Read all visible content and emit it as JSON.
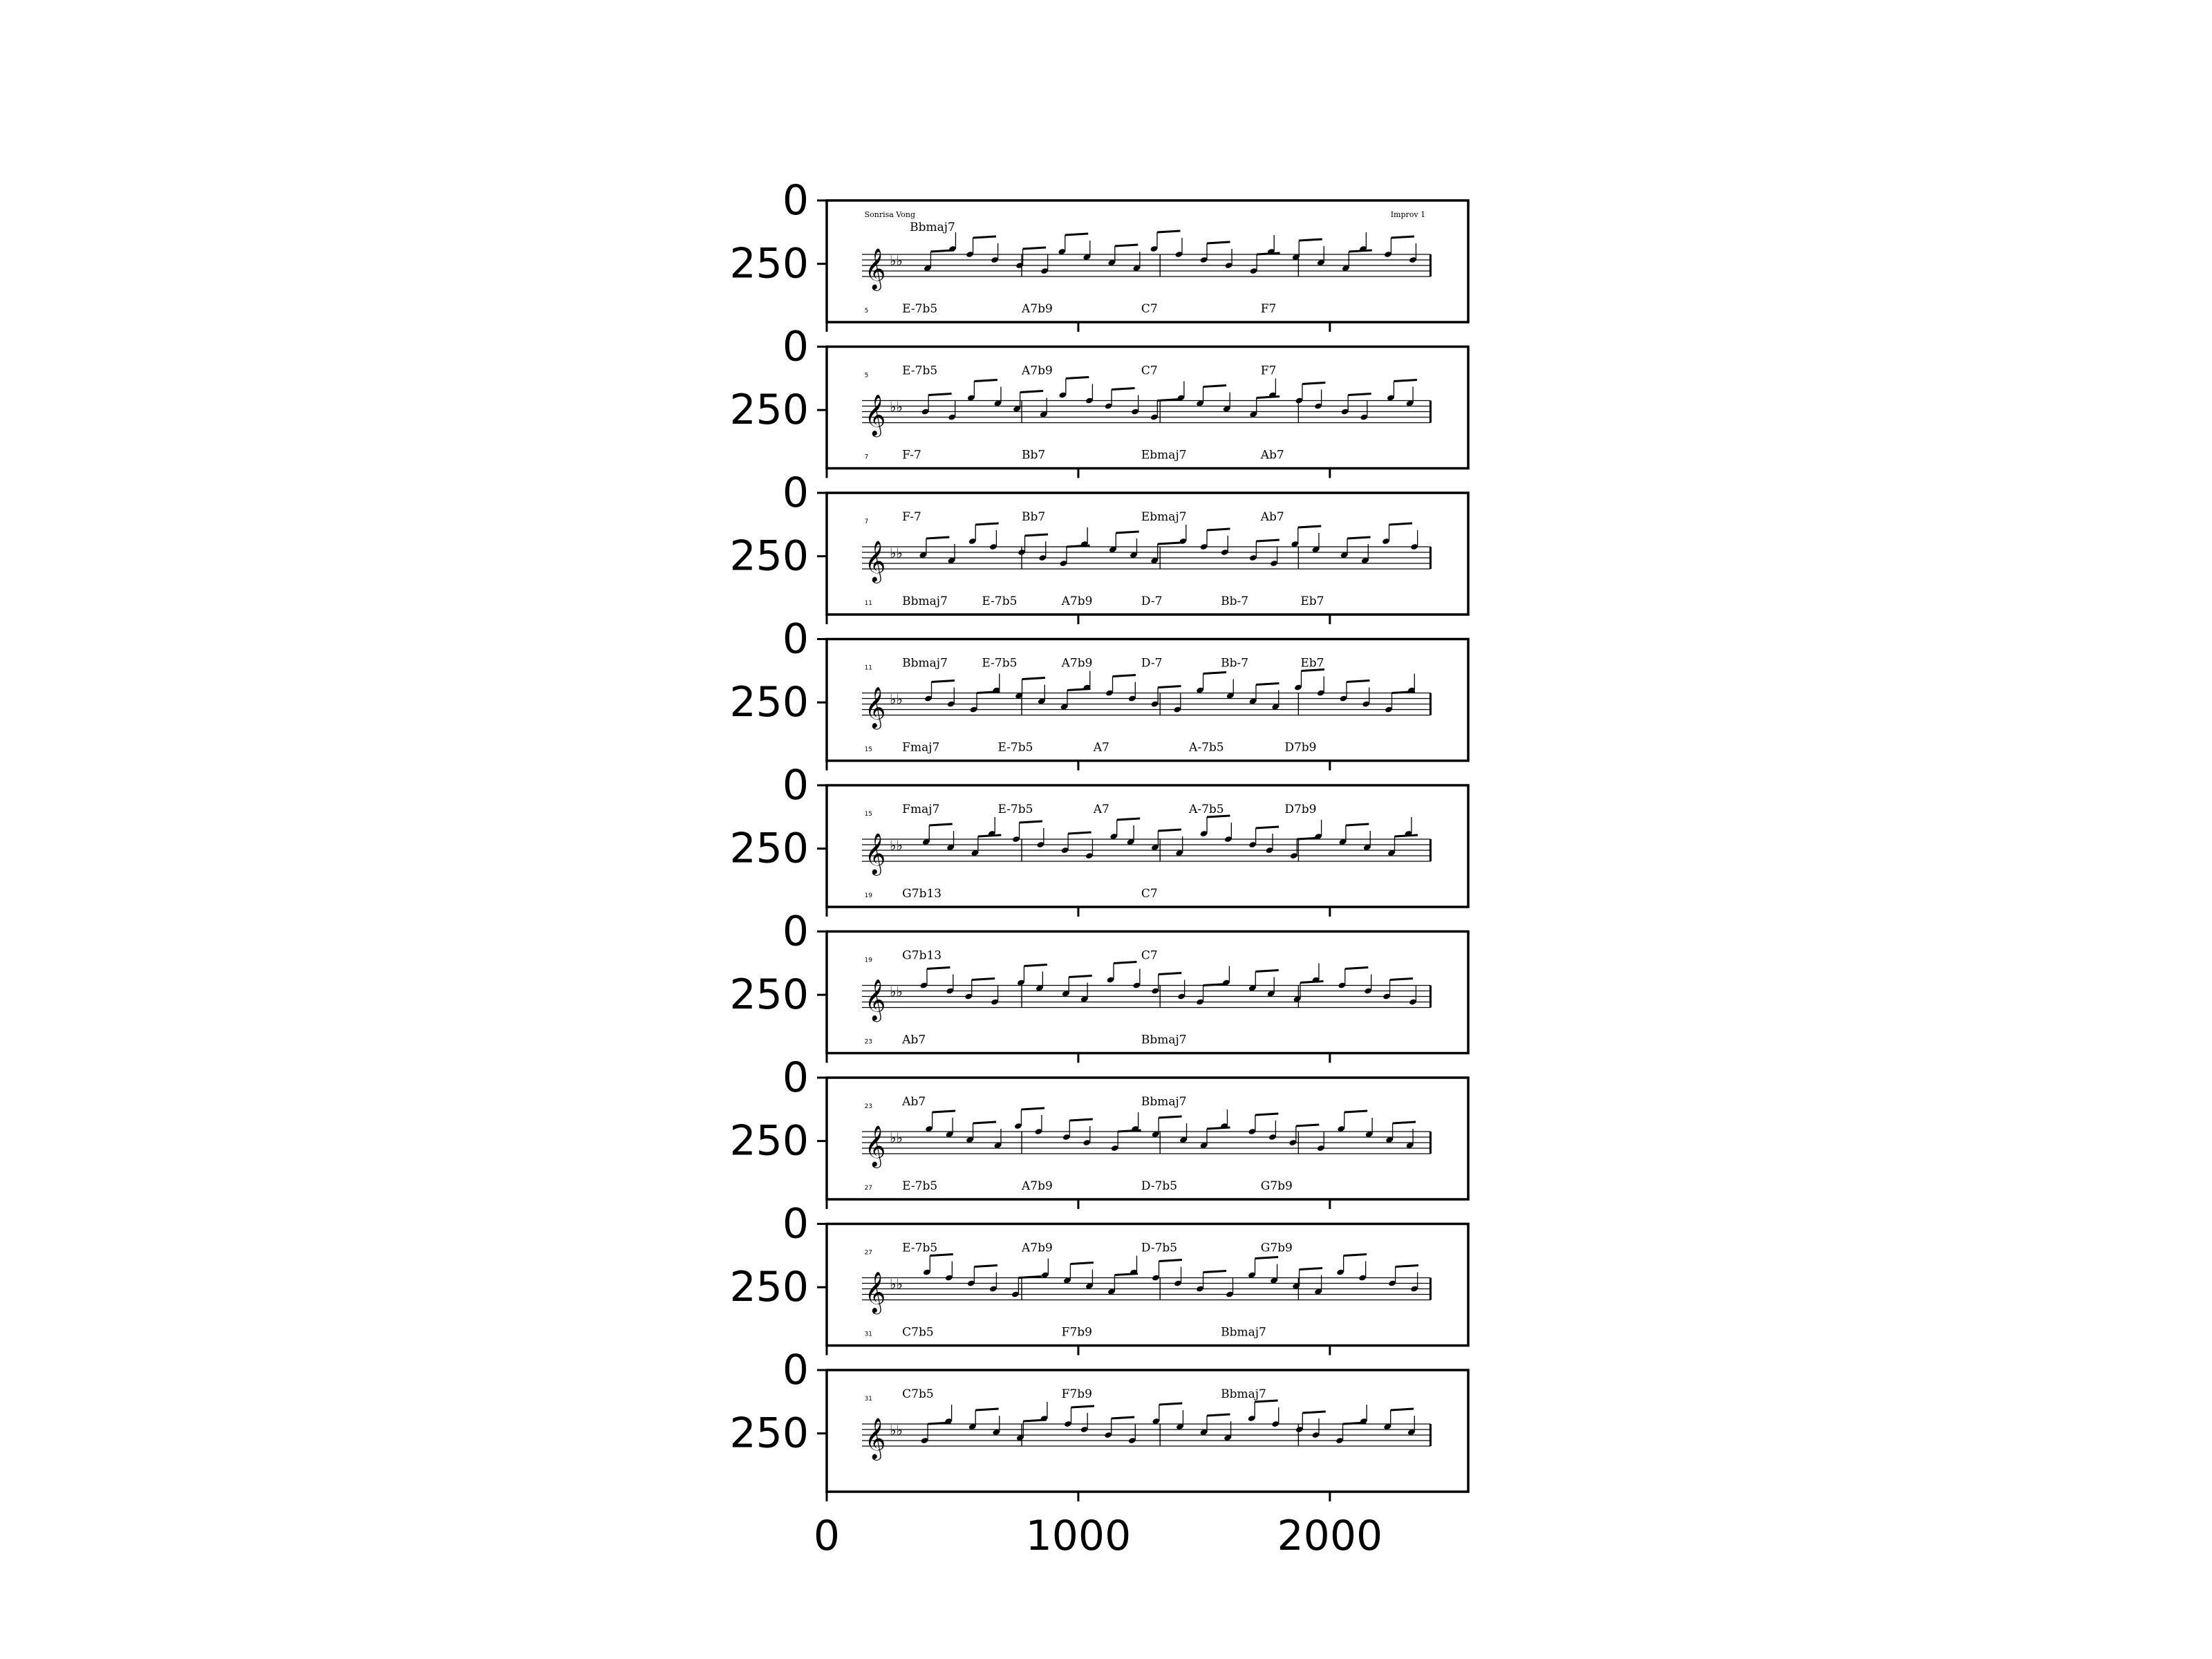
{
  "figure": {
    "x_ticks": [
      0,
      1000,
      2000
    ],
    "y_ticks": [
      0,
      250
    ],
    "xlim": [
      0,
      2550
    ],
    "ylim": [
      0,
      480
    ]
  },
  "sheet": {
    "song_title": "Sonrisa Vong",
    "subtitle": "Improv 1",
    "rows": [
      {
        "number": "",
        "chords": [
          "Bbmaj7"
        ],
        "next_number": "5",
        "next_chords": [
          "E-7b5",
          "A7b9",
          "C7",
          "F7"
        ]
      },
      {
        "number": "5",
        "chords": [
          "E-7b5",
          "A7b9",
          "C7",
          "F7"
        ],
        "next_number": "7",
        "next_chords": [
          "F-7",
          "Bb7",
          "Ebmaj7",
          "Ab7"
        ]
      },
      {
        "number": "7",
        "chords": [
          "F-7",
          "Bb7",
          "Ebmaj7",
          "Ab7"
        ],
        "next_number": "11",
        "next_chords": [
          "Bbmaj7",
          "E-7b5",
          "A7b9",
          "D-7",
          "Bb-7",
          "Eb7"
        ]
      },
      {
        "number": "11",
        "chords": [
          "Bbmaj7",
          "E-7b5",
          "A7b9",
          "D-7",
          "Bb-7",
          "Eb7"
        ],
        "next_number": "15",
        "next_chords": [
          "Fmaj7",
          "E-7b5",
          "A7",
          "A-7b5",
          "D7b9"
        ]
      },
      {
        "number": "15",
        "chords": [
          "Fmaj7",
          "E-7b5",
          "A7",
          "A-7b5",
          "D7b9"
        ],
        "next_number": "19",
        "next_chords": [
          "G7b13",
          "C7"
        ]
      },
      {
        "number": "19",
        "chords": [
          "G7b13",
          "C7"
        ],
        "next_number": "23",
        "next_chords": [
          "Ab7",
          "Bbmaj7"
        ]
      },
      {
        "number": "23",
        "chords": [
          "Ab7",
          "Bbmaj7"
        ],
        "next_number": "27",
        "next_chords": [
          "E-7b5",
          "A7b9",
          "D-7b5",
          "G7b9"
        ]
      },
      {
        "number": "27",
        "chords": [
          "E-7b5",
          "A7b9",
          "D-7b5",
          "G7b9"
        ],
        "next_number": "31",
        "next_chords": [
          "C7b5",
          "F7b9",
          "Bbmaj7"
        ]
      },
      {
        "number": "31",
        "chords": [
          "C7b5",
          "F7b9",
          "Bbmaj7"
        ],
        "next_number": "",
        "next_chords": []
      }
    ]
  }
}
